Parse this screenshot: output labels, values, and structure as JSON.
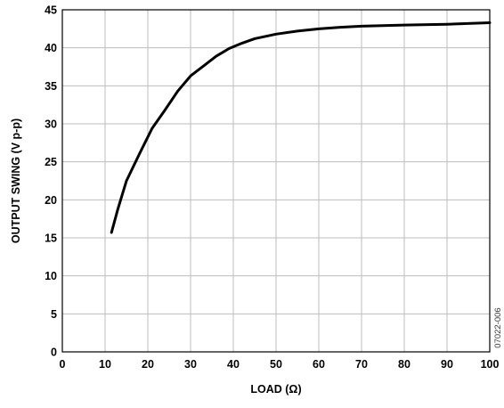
{
  "chart_data": {
    "type": "line",
    "title": "",
    "xlabel": "LOAD (Ω)",
    "ylabel": "OUTPUT SWING (V p-p)",
    "xlim": [
      0,
      100
    ],
    "ylim": [
      0,
      45
    ],
    "xticks": [
      0,
      10,
      20,
      30,
      40,
      50,
      60,
      70,
      80,
      90,
      100
    ],
    "yticks": [
      0,
      5,
      10,
      15,
      20,
      25,
      30,
      35,
      40,
      45
    ],
    "grid": true,
    "legend": "none",
    "series": [
      {
        "color": "#000000",
        "x": [
          11.5,
          13,
          15,
          18,
          21,
          24,
          27,
          30,
          33,
          36,
          39,
          42,
          45,
          50,
          55,
          60,
          65,
          70,
          80,
          90,
          100
        ],
        "y": [
          15.7,
          18.8,
          22.5,
          26.0,
          29.4,
          31.8,
          34.3,
          36.3,
          37.6,
          38.9,
          39.9,
          40.6,
          41.2,
          41.8,
          42.2,
          42.5,
          42.7,
          42.85,
          43.0,
          43.1,
          43.3
        ]
      }
    ],
    "annotation": "07022-006"
  }
}
